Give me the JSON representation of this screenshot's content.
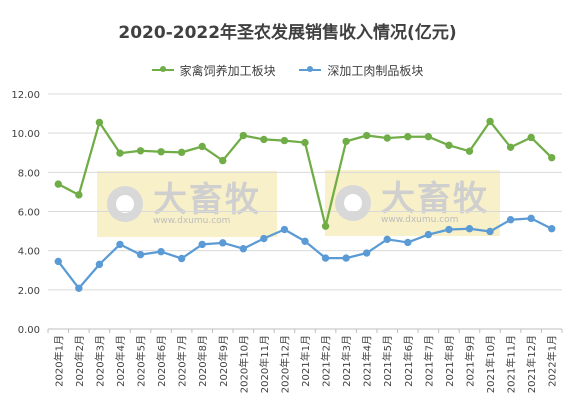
{
  "chart_data": {
    "type": "line",
    "title": "2020-2022年圣农发展销售收入情况(亿元)",
    "xlabel": "",
    "ylabel": "",
    "ylim": [
      0,
      12
    ],
    "yticks": [
      "0.00",
      "2.00",
      "4.00",
      "6.00",
      "8.00",
      "10.00",
      "12.00"
    ],
    "grid": true,
    "legend_position": "top",
    "categories": [
      "2020年1月",
      "2020年2月",
      "2020年3月",
      "2020年4月",
      "2020年5月",
      "2020年6月",
      "2020年7月",
      "2020年8月",
      "2020年9月",
      "2020年10月",
      "2020年11月",
      "2020年12月",
      "2021年1月",
      "2021年2月",
      "2021年3月",
      "2021年4月",
      "2021年5月",
      "2021年6月",
      "2021年7月",
      "2021年8月",
      "2021年9月",
      "2021年10月",
      "2021年11月",
      "2021年12月",
      "2022年1月"
    ],
    "series": [
      {
        "name": "家禽饲养加工板块",
        "color": "#70ad47",
        "values": [
          7.4,
          6.85,
          10.55,
          8.98,
          9.1,
          9.05,
          9.02,
          9.32,
          8.6,
          9.88,
          9.68,
          9.62,
          9.52,
          5.25,
          9.58,
          9.88,
          9.75,
          9.82,
          9.82,
          9.38,
          9.08,
          10.6,
          9.28,
          9.78,
          8.75
        ]
      },
      {
        "name": "深加工肉制品板块",
        "color": "#5b9bd5",
        "values": [
          3.45,
          2.08,
          3.3,
          4.32,
          3.8,
          3.95,
          3.6,
          4.32,
          4.4,
          4.1,
          4.62,
          5.08,
          4.48,
          3.62,
          3.62,
          3.88,
          4.58,
          4.42,
          4.82,
          5.08,
          5.12,
          4.98,
          5.58,
          5.65,
          5.12
        ]
      }
    ]
  },
  "watermark": {
    "brand": "大畜牧",
    "url": "www.dxumu.com",
    "logo_icon": "camera-lens-icon"
  }
}
